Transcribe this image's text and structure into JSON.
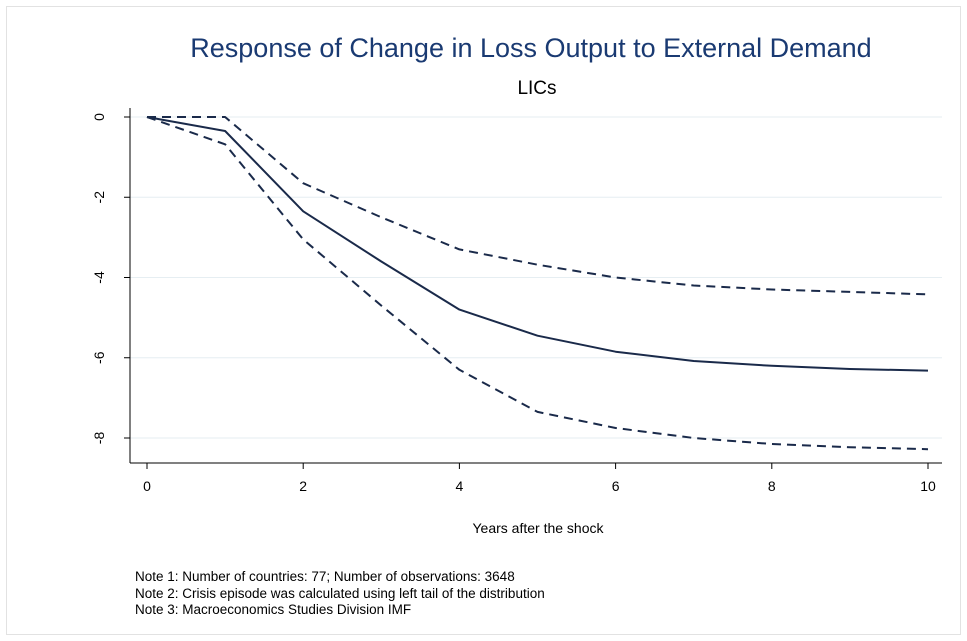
{
  "chart_data": {
    "type": "line",
    "title": "Response of Change in Loss Output to External Demand",
    "subtitle": "LICs",
    "xlabel": "Years after the shock",
    "ylabel": "",
    "xlim": [
      0,
      10
    ],
    "ylim": [
      -8.5,
      0.3
    ],
    "x_ticks": [
      "0",
      "2",
      "4",
      "6",
      "8",
      "10"
    ],
    "y_ticks": [
      "0",
      "-2",
      "-4",
      "-6",
      "-8"
    ],
    "grid": true,
    "legend": "none",
    "colors": {
      "line": "#1a2a4a",
      "grid": "#e6eef2",
      "title": "#1a3a72"
    },
    "series": [
      {
        "style": "solid",
        "x": [
          0,
          1,
          2,
          3,
          4,
          5,
          6,
          7,
          8,
          9,
          10
        ],
        "values": [
          0,
          -0.35,
          -2.35,
          -3.6,
          -4.8,
          -5.45,
          -5.85,
          -6.08,
          -6.2,
          -6.28,
          -6.32
        ]
      },
      {
        "style": "dashed",
        "x": [
          0,
          1,
          2,
          3,
          4,
          5,
          6,
          7,
          8,
          9,
          10
        ],
        "values": [
          0,
          0,
          -1.65,
          -2.5,
          -3.3,
          -3.68,
          -4.0,
          -4.2,
          -4.3,
          -4.36,
          -4.42
        ]
      },
      {
        "style": "dashed",
        "x": [
          0,
          1,
          2,
          3,
          4,
          5,
          6,
          7,
          8,
          9,
          10
        ],
        "values": [
          0,
          -0.68,
          -3.05,
          -4.7,
          -6.3,
          -7.35,
          -7.75,
          -8.0,
          -8.15,
          -8.23,
          -8.28
        ]
      }
    ]
  },
  "notes": [
    "Note 1: Number of countries: 77; Number of observations: 3648",
    "Note 2: Crisis episode was calculated using left tail of the distribution",
    "Note 3: Macroeconomics Studies Division IMF"
  ]
}
